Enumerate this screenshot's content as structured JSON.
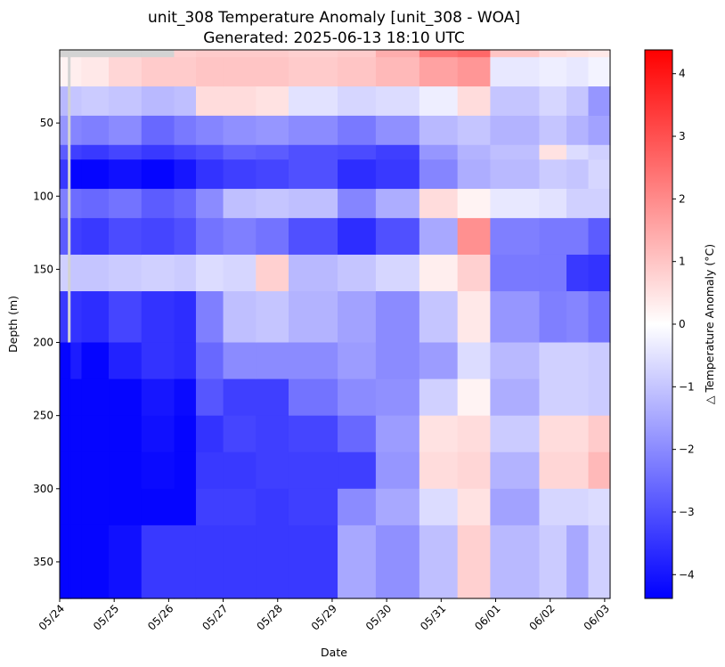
{
  "chart_data": {
    "type": "heatmap",
    "title_line1": "unit_308 Temperature Anomaly [unit_308 - WOA]",
    "title_line2": "Generated: 2025-06-13 18:10 UTC",
    "xlabel": "Date",
    "ylabel": "Depth (m)",
    "colorbar_label": "△ Temperature Anomaly (°C)",
    "x_ticks": [
      "05/24",
      "05/25",
      "05/26",
      "05/27",
      "05/28",
      "05/29",
      "05/30",
      "05/31",
      "06/01",
      "06/02",
      "06/03"
    ],
    "y_ticks": [
      "50",
      "100",
      "150",
      "200",
      "250",
      "300",
      "350"
    ],
    "colorbar_ticks": [
      "−4",
      "−3",
      "−2",
      "−1",
      "0",
      "1",
      "2",
      "3",
      "4"
    ],
    "xlim_days": [
      0,
      10.1
    ],
    "ylim_depth_m": [
      0,
      375
    ],
    "clim": [
      -4.38,
      4.38
    ],
    "colormap": [
      "#0000ff",
      "#ffffff",
      "#ff0000"
    ],
    "missing_color": "#d3d3d3",
    "depth_bins_m": [
      0,
      5,
      25,
      45,
      65,
      75,
      95,
      115,
      140,
      165,
      200,
      225,
      250,
      275,
      300,
      325,
      375
    ],
    "time_segments": [
      {
        "x0": 0.0,
        "x1": 0.15,
        "values": [
          null,
          0.2,
          -1.2,
          -1.8,
          -2.8,
          -3.4,
          -2.2,
          -2.8,
          -0.8,
          -3.4,
          -4.3,
          -4.3,
          -4.3,
          -4.3,
          -4.3,
          -4.3,
          null
        ]
      },
      {
        "x0": 0.15,
        "x1": 0.2,
        "values": [
          null,
          null,
          null,
          null,
          null,
          null,
          null,
          null,
          null,
          null,
          -4.3,
          -4.3,
          -4.3,
          -4.3,
          -4.3,
          -4.3,
          null
        ]
      },
      {
        "x0": 0.2,
        "x1": 0.4,
        "values": [
          null,
          0.3,
          -1.0,
          -2.1,
          -3.3,
          -4.3,
          -2.5,
          -3.3,
          -1.0,
          -3.5,
          -3.9,
          -4.3,
          -4.3,
          -4.3,
          -4.3,
          -4.3,
          null
        ]
      },
      {
        "x0": 0.4,
        "x1": 0.9,
        "values": [
          null,
          0.4,
          -0.9,
          -2.2,
          -3.4,
          -4.3,
          -2.6,
          -3.4,
          -1.0,
          -3.6,
          -4.3,
          -4.3,
          -4.3,
          -4.3,
          -4.3,
          -4.3,
          null
        ]
      },
      {
        "x0": 0.9,
        "x1": 1.5,
        "values": [
          null,
          0.7,
          -1.0,
          -2.0,
          -3.2,
          -4.1,
          -2.4,
          -3.1,
          -0.9,
          -3.2,
          -3.8,
          -4.3,
          -4.3,
          -4.3,
          -4.3,
          -4.1,
          null
        ]
      },
      {
        "x0": 1.5,
        "x1": 2.1,
        "values": [
          null,
          0.9,
          -1.2,
          -2.6,
          -3.4,
          -4.3,
          -2.8,
          -3.2,
          -0.8,
          -3.5,
          -3.5,
          -4.0,
          -4.1,
          -4.2,
          -4.3,
          -3.4,
          null
        ]
      },
      {
        "x0": 2.1,
        "x1": 2.5,
        "values": [
          0.8,
          0.9,
          -1.1,
          -2.3,
          -3.2,
          -4.0,
          -2.6,
          -3.0,
          -0.9,
          -3.6,
          -3.6,
          -4.2,
          -4.3,
          -4.3,
          -4.3,
          -3.4,
          null
        ]
      },
      {
        "x0": 2.5,
        "x1": 3.0,
        "values": [
          0.9,
          1.0,
          0.6,
          -2.1,
          -3.0,
          -3.5,
          -2.0,
          -2.4,
          -0.6,
          -2.2,
          -2.6,
          -2.9,
          -3.5,
          -3.4,
          -3.3,
          -3.4,
          null
        ]
      },
      {
        "x0": 3.0,
        "x1": 3.6,
        "values": [
          0.9,
          1.0,
          0.6,
          -1.9,
          -2.7,
          -3.3,
          -1.1,
          -2.2,
          -0.7,
          -1.1,
          -2.0,
          -3.3,
          -3.2,
          -3.4,
          -3.3,
          -3.4,
          null
        ]
      },
      {
        "x0": 3.6,
        "x1": 4.2,
        "values": [
          0.9,
          1.0,
          0.5,
          -1.8,
          -2.8,
          -3.2,
          -1.0,
          -2.4,
          0.8,
          -1.0,
          -2.0,
          -3.3,
          -3.3,
          -3.3,
          -3.4,
          -3.4,
          null
        ]
      },
      {
        "x0": 4.2,
        "x1": 5.1,
        "values": [
          0.8,
          0.9,
          -0.5,
          -2.0,
          -3.0,
          -3.0,
          -1.1,
          -3.0,
          -1.2,
          -1.3,
          -2.0,
          -2.4,
          -3.2,
          -3.3,
          -3.3,
          -3.4,
          null
        ]
      },
      {
        "x0": 5.1,
        "x1": 5.8,
        "values": [
          0.9,
          1.0,
          -0.7,
          -2.3,
          -3.1,
          -3.6,
          -2.1,
          -3.6,
          -1.0,
          -1.6,
          -1.7,
          -2.0,
          -2.6,
          -3.3,
          -2.0,
          -1.5,
          null
        ]
      },
      {
        "x0": 5.8,
        "x1": 6.6,
        "values": [
          1.4,
          1.2,
          -0.6,
          -1.9,
          -3.3,
          -3.4,
          -1.4,
          -3.0,
          -0.7,
          -2.0,
          -2.0,
          -1.9,
          -1.7,
          -1.8,
          -1.5,
          -1.9,
          null
        ]
      },
      {
        "x0": 6.6,
        "x1": 7.3,
        "values": [
          2.4,
          1.6,
          -0.3,
          -1.2,
          -1.8,
          -2.1,
          0.6,
          -1.5,
          0.3,
          -1.0,
          -1.7,
          -0.8,
          0.5,
          0.6,
          -0.6,
          -1.1,
          null
        ]
      },
      {
        "x0": 7.3,
        "x1": 7.9,
        "values": [
          2.6,
          1.8,
          0.6,
          -1.0,
          -1.3,
          -1.4,
          0.2,
          1.9,
          0.8,
          0.4,
          -0.6,
          0.2,
          0.6,
          0.7,
          0.5,
          0.8,
          null
        ]
      },
      {
        "x0": 7.9,
        "x1": 8.8,
        "values": [
          1.0,
          -0.4,
          -1.0,
          -1.3,
          -1.1,
          -1.2,
          -0.4,
          -2.2,
          -2.3,
          -1.8,
          -1.2,
          -1.4,
          -0.9,
          -1.3,
          -1.6,
          -1.2,
          null
        ]
      },
      {
        "x0": 8.8,
        "x1": 9.3,
        "values": [
          0.6,
          -0.3,
          -0.7,
          -1.0,
          0.5,
          -0.9,
          -0.5,
          -2.3,
          -2.3,
          -2.2,
          -0.8,
          -0.8,
          0.6,
          0.7,
          -0.7,
          -0.9,
          null
        ]
      },
      {
        "x0": 9.3,
        "x1": 9.7,
        "values": [
          0.5,
          -0.4,
          -1.0,
          -1.3,
          -0.6,
          -1.0,
          -0.8,
          -2.3,
          -3.4,
          -2.1,
          -0.8,
          -0.8,
          0.6,
          0.7,
          -0.7,
          -1.5,
          -0.9
        ]
      },
      {
        "x0": 9.7,
        "x1": 10.1,
        "values": [
          0.4,
          -0.2,
          -1.8,
          -1.6,
          -0.8,
          -0.7,
          -0.8,
          -2.8,
          -3.5,
          -2.4,
          -0.9,
          -0.9,
          0.9,
          1.2,
          -0.6,
          -0.8,
          -1.0
        ]
      }
    ]
  }
}
